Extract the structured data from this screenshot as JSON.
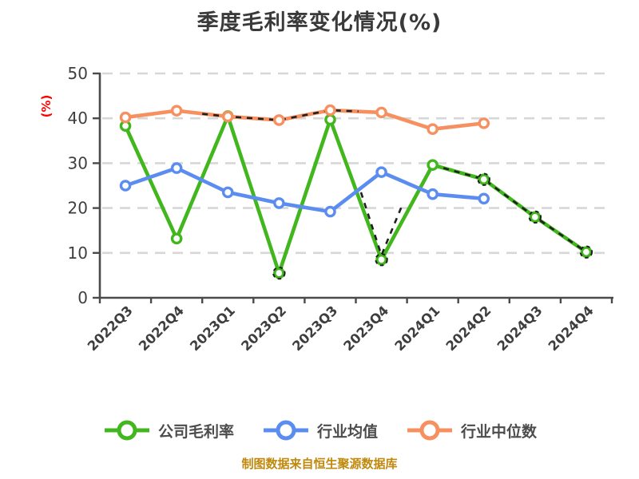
{
  "title": "季度毛利率变化情况(%)",
  "footer": "制图数据来自恒生聚源数据库",
  "legend": [
    {
      "label": "公司毛利率",
      "color": "#41b71d"
    },
    {
      "label": "行业均值",
      "color": "#5b8cf0"
    },
    {
      "label": "行业中位数",
      "color": "#f79060"
    }
  ],
  "colors": {
    "company": "#41b71d",
    "industry_mean": "#5b8cf0",
    "industry_median": "#f79060",
    "grid": "#d7d7d7",
    "axis": "#4a4a4a",
    "tick_text": "#3e3e3e",
    "y_axis_label": "#ff0000",
    "estimate_dash": "#1f1f1f",
    "footer_text": "#c0890e",
    "title_text": "#3a3a3a"
  },
  "chart_data": {
    "type": "line",
    "title": "季度毛利率变化情况(%)",
    "xlabel": "",
    "ylabel": "(%)",
    "ylim": [
      0,
      50
    ],
    "y_ticks": [
      0,
      10,
      20,
      30,
      40,
      50
    ],
    "grid": "horizontal-dashed",
    "legend_position": "bottom",
    "marker": "white-filled circle",
    "categories": [
      "2022Q3",
      "2022Q4",
      "2023Q1",
      "2023Q2",
      "2023Q3",
      "2023Q4",
      "2024Q1",
      "2024Q2",
      "2024Q3",
      "2024Q4"
    ],
    "series": [
      {
        "name": "公司毛利率",
        "color": "#41b71d",
        "values": [
          38.3,
          13.2,
          40.5,
          5.5,
          39.7,
          8.5,
          29.6,
          26.4,
          18.0,
          10.2
        ]
      },
      {
        "name": "行业均值",
        "color": "#5b8cf0",
        "values": [
          25.0,
          28.9,
          23.5,
          21.1,
          19.2,
          28.0,
          23.1,
          22.1
        ]
      },
      {
        "name": "行业中位数",
        "color": "#f79060",
        "values": [
          40.2,
          41.7,
          40.4,
          39.6,
          41.8,
          41.3,
          37.6,
          38.9
        ]
      }
    ],
    "dashed_estimate_overlays": [
      {
        "name": "median-estimate",
        "points": [
          [
            1.5,
            41.0
          ],
          [
            2,
            40.4
          ],
          [
            3,
            39.6
          ],
          [
            4,
            41.8
          ],
          [
            4.55,
            41.55
          ]
        ]
      },
      {
        "name": "company-estimate-dip",
        "points": [
          [
            4.6,
            23.5
          ],
          [
            5,
            9.5
          ],
          [
            5.4,
            20.5
          ]
        ]
      },
      {
        "name": "company-estimate-tail",
        "points": [
          [
            6,
            29.6
          ],
          [
            7,
            26.4
          ],
          [
            8,
            18.0
          ],
          [
            9,
            10.2
          ]
        ]
      }
    ],
    "dashed_ring_markers": {
      "series": "公司毛利率",
      "indices": [
        3,
        5,
        7,
        8,
        9
      ]
    }
  }
}
